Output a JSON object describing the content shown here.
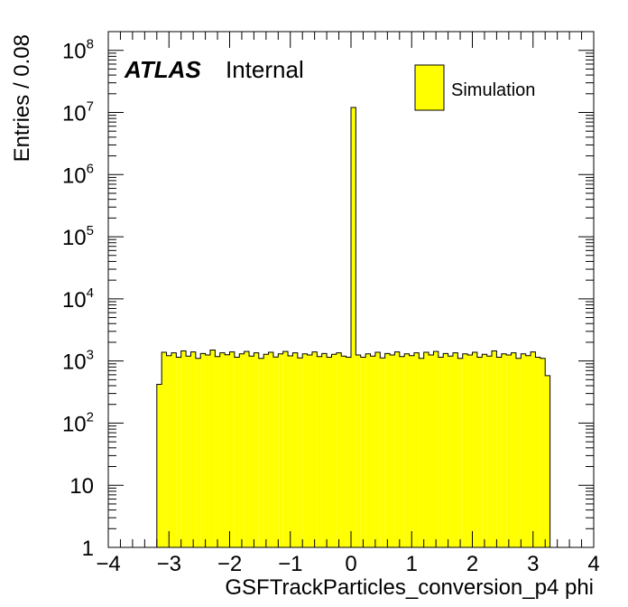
{
  "chart_data": {
    "type": "bar",
    "xlabel": "GSFTrackParticles_conversion_p4 phi",
    "ylabel": "Entries / 0.08",
    "xlim": [
      -4,
      4
    ],
    "ylim": [
      1,
      200000000
    ],
    "log_y": true,
    "grid": false,
    "legend_position": "top-right",
    "atlas_label": "ATLAS",
    "atlas_status": "Internal",
    "x_ticks": [
      {
        "value": -4,
        "label": "−4"
      },
      {
        "value": -3,
        "label": "−3"
      },
      {
        "value": -2,
        "label": "−2"
      },
      {
        "value": -1,
        "label": "−1"
      },
      {
        "value": 0,
        "label": "0"
      },
      {
        "value": 1,
        "label": "1"
      },
      {
        "value": 2,
        "label": "2"
      },
      {
        "value": 3,
        "label": "3"
      },
      {
        "value": 4,
        "label": "4"
      }
    ],
    "y_ticks": [
      {
        "value": 1,
        "base": "1",
        "exp": ""
      },
      {
        "value": 10,
        "base": "10",
        "exp": ""
      },
      {
        "value": 100,
        "base": "10",
        "exp": "2"
      },
      {
        "value": 1000,
        "base": "10",
        "exp": "3"
      },
      {
        "value": 10000,
        "base": "10",
        "exp": "4"
      },
      {
        "value": 100000,
        "base": "10",
        "exp": "5"
      },
      {
        "value": 1000000,
        "base": "10",
        "exp": "6"
      },
      {
        "value": 10000000,
        "base": "10",
        "exp": "7"
      },
      {
        "value": 100000000,
        "base": "10",
        "exp": "8"
      }
    ],
    "series": [
      {
        "name": "Simulation",
        "color": "#ffff00",
        "line_color": "#000000",
        "bin_width": 0.08,
        "bin_start": -3.2,
        "values": [
          420,
          1380,
          1220,
          1350,
          1150,
          1450,
          1200,
          1400,
          1100,
          1320,
          1250,
          1500,
          1180,
          1350,
          1260,
          1400,
          1150,
          1300,
          1420,
          1200,
          1350,
          1100,
          1280,
          1380,
          1160,
          1300,
          1420,
          1210,
          1350,
          1120,
          1300,
          1250,
          1400,
          1180,
          1320,
          1150,
          1280,
          1350,
          1200,
          1150,
          12000000,
          1250,
          1150,
          1300,
          1200,
          1380,
          1120,
          1320,
          1250,
          1400,
          1180,
          1300,
          1220,
          1350,
          1100,
          1380,
          1250,
          1420,
          1150,
          1320,
          1200,
          1350,
          1100,
          1300,
          1250,
          1380,
          1150,
          1280,
          1200,
          1450,
          1150,
          1300,
          1250,
          1350,
          1100,
          1300,
          1220,
          1400,
          1150,
          1100,
          580
        ]
      }
    ]
  }
}
